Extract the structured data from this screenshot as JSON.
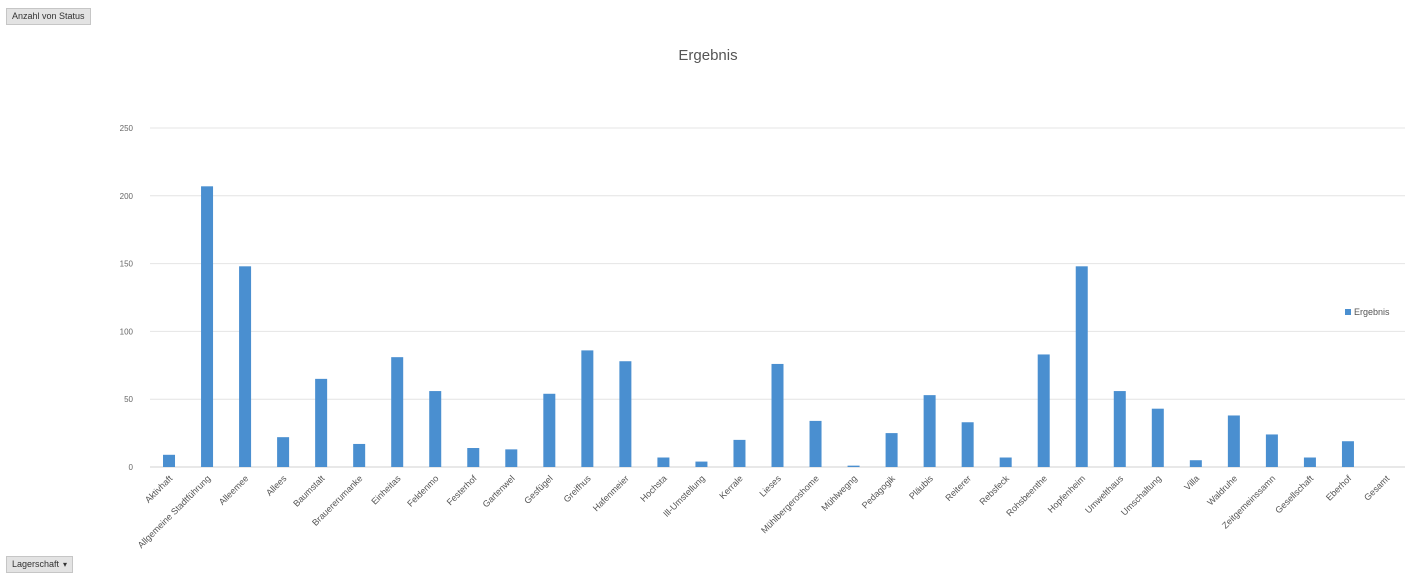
{
  "pivot": {
    "values_field": "Anzahl von Status",
    "axis_field": "Lagerschaft",
    "axis_dropdown": "▾"
  },
  "colors": {
    "bar": "#4a8fd0",
    "grid": "#e4e4e4",
    "axis": "#d0d0d0"
  },
  "chart_data": {
    "type": "bar",
    "title": "Ergebnis",
    "xlabel": "",
    "ylabel": "",
    "ylim": [
      0,
      250
    ],
    "yticks": [
      0,
      50,
      100,
      150,
      200,
      250
    ],
    "grid": true,
    "legend": {
      "position": "right",
      "entries": [
        "Ergebnis"
      ]
    },
    "categories": [
      "Aktivhaft",
      "Allgemeine Stadtführung",
      "Alleemee",
      "Allees",
      "Baumstalt",
      "Brauererumanke",
      "Einheitas",
      "Feldenmo",
      "Festerhof",
      "Gartenwel",
      "Gesfügel",
      "Greifhus",
      "Hafenmeier",
      "Hochsta",
      "Ill-Umstellung",
      "Kerrale",
      "Lieses",
      "Mühlbergeroshome",
      "Mühlwegng",
      "Pedagogik",
      "Pläubis",
      "Reiterer",
      "Rebsfeck",
      "Rohsbeenthe",
      "Hopfenheim",
      "Umwelthaus",
      "Umschaltung",
      "Villa",
      "Waldruhe",
      "Zeitgemeinssamn",
      "Gesellschaft",
      "Eberhof",
      "Gesamt"
    ],
    "series": [
      {
        "name": "Ergebnis",
        "values": [
          9,
          207,
          148,
          22,
          65,
          17,
          81,
          56,
          14,
          13,
          54,
          86,
          78,
          7,
          4,
          20,
          76,
          34,
          1,
          25,
          53,
          33,
          7,
          83,
          148,
          56,
          43,
          5,
          38,
          24,
          7,
          19,
          0
        ]
      }
    ]
  }
}
